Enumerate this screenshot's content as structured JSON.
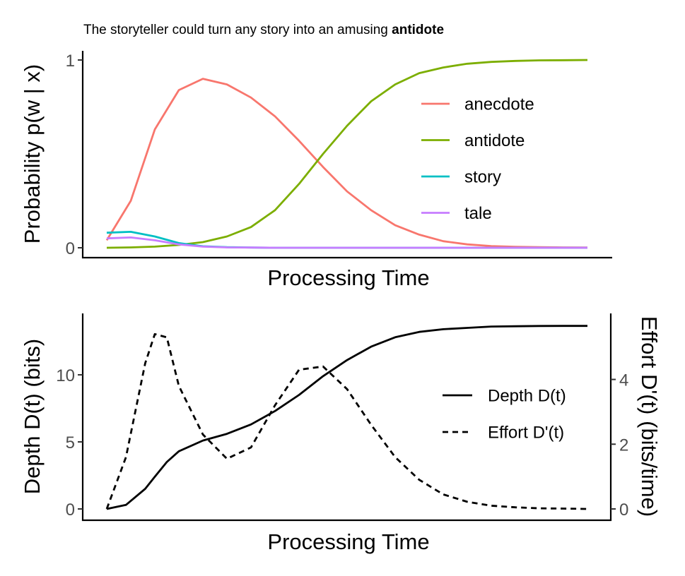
{
  "sentence": {
    "prefix": "The storyteller could turn any story into an amusing ",
    "target": "antidote"
  },
  "chart_data": [
    {
      "type": "line",
      "title": "",
      "xlabel": "Processing Time",
      "ylabel": "Probability p(w | x)",
      "xlim": [
        0,
        1
      ],
      "ylim": [
        0,
        1
      ],
      "yticks": [
        0,
        1
      ],
      "grid": false,
      "legend": "right",
      "x": [
        0,
        0.05,
        0.1,
        0.15,
        0.2,
        0.25,
        0.3,
        0.35,
        0.4,
        0.45,
        0.5,
        0.55,
        0.6,
        0.65,
        0.7,
        0.75,
        0.8,
        0.85,
        0.9,
        0.95,
        1
      ],
      "series": [
        {
          "name": "anecdote",
          "color": "#F8766D",
          "values": [
            0.04,
            0.25,
            0.63,
            0.84,
            0.9,
            0.87,
            0.8,
            0.7,
            0.57,
            0.43,
            0.3,
            0.2,
            0.12,
            0.07,
            0.035,
            0.018,
            0.009,
            0.005,
            0.003,
            0.002,
            0.001
          ]
        },
        {
          "name": "antidote",
          "color": "#7CAE00",
          "values": [
            0,
            0.002,
            0.006,
            0.015,
            0.03,
            0.06,
            0.11,
            0.2,
            0.34,
            0.5,
            0.65,
            0.78,
            0.87,
            0.93,
            0.96,
            0.98,
            0.99,
            0.995,
            0.998,
            0.999,
            1
          ]
        },
        {
          "name": "story",
          "color": "#00BFC4",
          "values": [
            0.08,
            0.085,
            0.06,
            0.025,
            0.008,
            0.003,
            0.001,
            0,
            0,
            0,
            0,
            0,
            0,
            0,
            0,
            0,
            0,
            0,
            0,
            0,
            0
          ]
        },
        {
          "name": "tale",
          "color": "#C77CFF",
          "values": [
            0.05,
            0.055,
            0.04,
            0.018,
            0.006,
            0.002,
            0.001,
            0,
            0,
            0,
            0,
            0,
            0,
            0,
            0,
            0,
            0,
            0,
            0,
            0,
            0
          ]
        }
      ]
    },
    {
      "type": "line",
      "title": "",
      "xlabel": "Processing Time",
      "ylabel": "Depth D(t) (bits)",
      "y2label": "Effort D'(t) (bits/time)",
      "xlim": [
        0,
        1
      ],
      "ylim": [
        0,
        14
      ],
      "y2lim": [
        0,
        5.8
      ],
      "yticks": [
        0,
        5,
        10
      ],
      "y2ticks": [
        0,
        2,
        4
      ],
      "grid": false,
      "legend": "right",
      "x": [
        0,
        0.04,
        0.08,
        0.1,
        0.125,
        0.15,
        0.2,
        0.25,
        0.3,
        0.35,
        0.4,
        0.45,
        0.5,
        0.55,
        0.6,
        0.65,
        0.7,
        0.75,
        0.8,
        0.85,
        0.9,
        0.95,
        1
      ],
      "series": [
        {
          "name": "Depth D(t)",
          "axis": "left",
          "style": "solid",
          "values": [
            0,
            0.3,
            1.5,
            2.4,
            3.5,
            4.3,
            5.1,
            5.6,
            6.3,
            7.3,
            8.5,
            9.9,
            11.1,
            12.1,
            12.8,
            13.2,
            13.4,
            13.5,
            13.6,
            13.62,
            13.64,
            13.65,
            13.65
          ]
        },
        {
          "name": "Effort D'(t)",
          "axis": "right",
          "style": "dashed",
          "values": [
            0,
            1.6,
            4.5,
            5.4,
            5.3,
            3.8,
            2.3,
            1.55,
            1.9,
            3.2,
            4.3,
            4.4,
            3.7,
            2.6,
            1.6,
            0.9,
            0.45,
            0.22,
            0.1,
            0.05,
            0.02,
            0.01,
            0
          ]
        }
      ]
    }
  ]
}
